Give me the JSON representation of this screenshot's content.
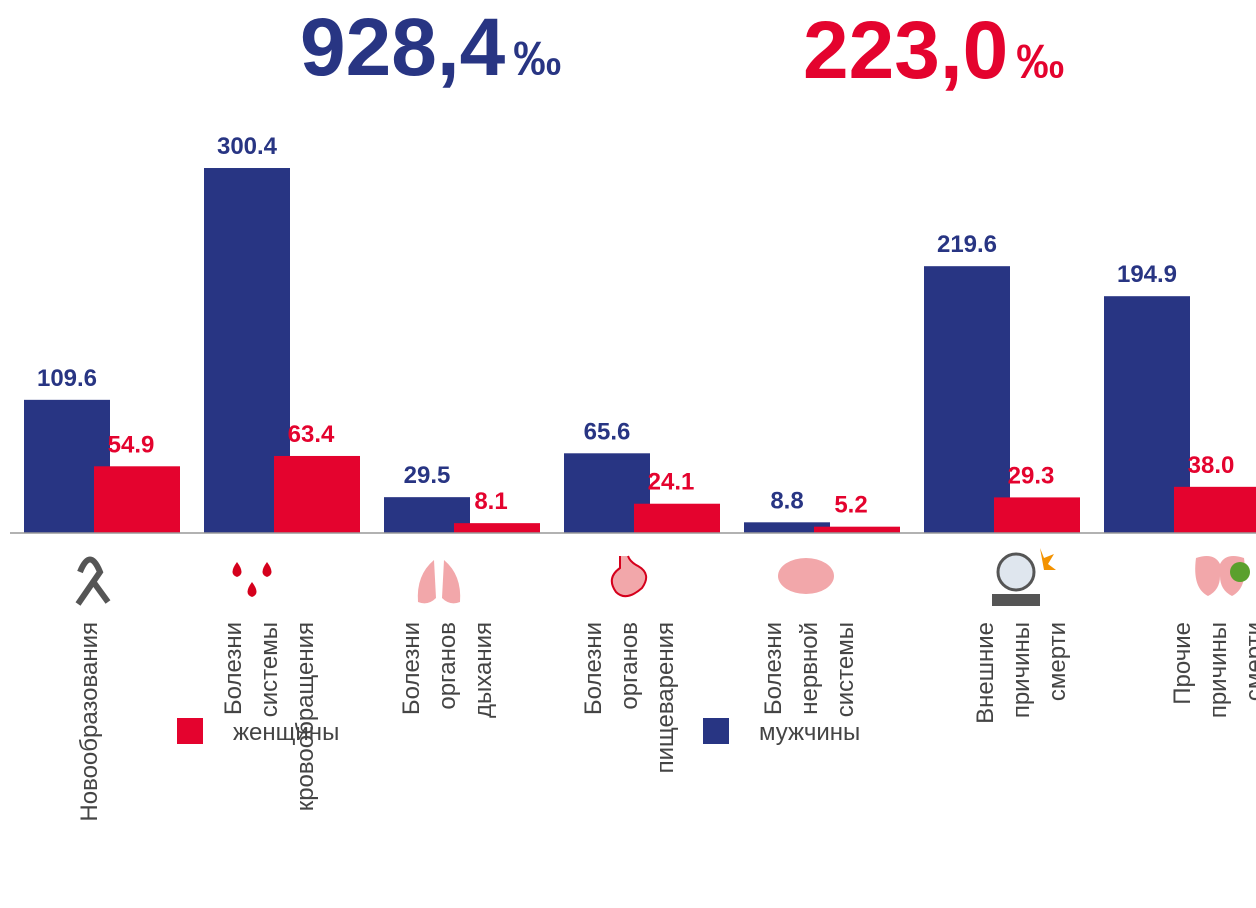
{
  "chart_data": {
    "type": "bar",
    "annotations": [
      {
        "text": "928,4",
        "unit": "‰",
        "color": "#283583"
      },
      {
        "text": "223,0",
        "unit": "‰",
        "color": "#e4032e"
      }
    ],
    "categories": [
      [
        "Новообразования"
      ],
      [
        "Болезни",
        "системы",
        "кровообращения"
      ],
      [
        "Болезни",
        "органов",
        "дыхания"
      ],
      [
        "Болезни",
        "органов",
        "пищеварения"
      ],
      [
        "Болезни",
        "нервной",
        "системы"
      ],
      [
        "Внешние",
        "причины",
        "смерти"
      ],
      [
        "Прочие",
        "причины",
        "смерти"
      ]
    ],
    "series": [
      {
        "name": "мужчины",
        "color": "#283583",
        "values": [
          109.6,
          300.4,
          29.5,
          65.6,
          8.8,
          219.6,
          194.9
        ],
        "value_labels": [
          "109.6",
          "300.4",
          "29.5",
          "65.6",
          "8.8",
          "219.6",
          "194.9"
        ]
      },
      {
        "name": "женщины",
        "color": "#e4032e",
        "values": [
          54.9,
          63.4,
          8.1,
          24.1,
          5.2,
          29.3,
          38.0
        ],
        "value_labels": [
          "54.9",
          "63.4",
          "8.1",
          "24.1",
          "5.2",
          "29.3",
          "38.0"
        ]
      }
    ],
    "ylim": [
      0,
      350
    ]
  }
}
